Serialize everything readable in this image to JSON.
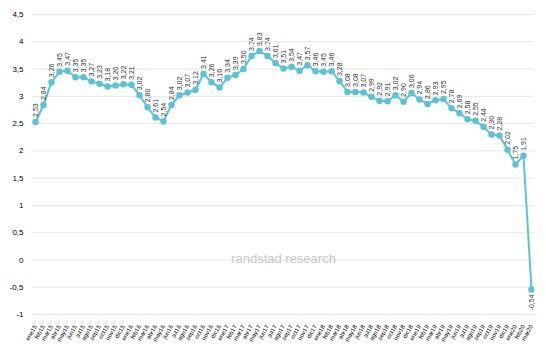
{
  "chart_data": {
    "type": "line",
    "color": "#5bc3d3",
    "marker": "circle",
    "data_labels": true,
    "grid": true,
    "annotations": [
      "randstad research"
    ],
    "categories": [
      "ene15",
      "feb15",
      "mar15",
      "abr15",
      "may15",
      "jun15",
      "jul15",
      "ago15",
      "sep15",
      "oct15",
      "nov15",
      "dic15",
      "ene16",
      "feb16",
      "mar16",
      "abr16",
      "may16",
      "jun16",
      "jul16",
      "ago16",
      "sep16",
      "oct16",
      "nov16",
      "dic16",
      "ene17",
      "feb17",
      "mar17",
      "abr17",
      "may17",
      "jun17",
      "jul17",
      "ago17",
      "sep17",
      "oct17",
      "nov17",
      "dic17",
      "ene18",
      "feb18",
      "mar18",
      "abr18",
      "may18",
      "jun18",
      "jul18",
      "ago18",
      "sep18",
      "oct18",
      "nov18",
      "dic18",
      "ene19",
      "feb19",
      "mar19",
      "abr19",
      "may19",
      "jun19",
      "jul19",
      "ago19",
      "sep19",
      "oct19",
      "nov19",
      "dic19",
      "ene20",
      "feb20",
      "mar20"
    ],
    "values": [
      2.53,
      2.84,
      3.26,
      3.45,
      3.47,
      3.35,
      3.35,
      3.27,
      3.23,
      3.18,
      3.2,
      3.22,
      3.21,
      3.02,
      2.8,
      2.61,
      2.54,
      2.84,
      3.02,
      3.07,
      3.12,
      3.41,
      3.26,
      3.16,
      3.34,
      3.39,
      3.5,
      3.74,
      3.83,
      3.74,
      3.61,
      3.51,
      3.54,
      3.47,
      3.57,
      3.46,
      3.45,
      3.46,
      3.28,
      3.08,
      3.08,
      3.07,
      2.99,
      2.92,
      2.91,
      3.02,
      2.9,
      3.06,
      2.94,
      2.86,
      2.93,
      2.95,
      2.78,
      2.69,
      2.58,
      2.55,
      2.44,
      2.3,
      2.28,
      2.02,
      1.75,
      1.91,
      -0.54
    ],
    "value_labels": [
      "2,53",
      "2,84",
      "3,26",
      "3,45",
      "3,47",
      "3,35",
      "3,35",
      "3,27",
      "3,23",
      "3,18",
      "3,20",
      "3,22",
      "3,21",
      "3,02",
      "2,80",
      "2,61",
      "2,54",
      "2,84",
      "3,02",
      "3,07",
      "3,12",
      "3,41",
      "3,26",
      "3,16",
      "3,34",
      "3,39",
      "3,50",
      "3,74",
      "3,83",
      "3,74",
      "3,61",
      "3,51",
      "3,54",
      "3,47",
      "3,57",
      "3,46",
      "3,45",
      "3,46",
      "3,28",
      "3,08",
      "3,08",
      "3,07",
      "2,99",
      "2,92",
      "2,91",
      "3,02",
      "2,90",
      "3,06",
      "2,94",
      "2,86",
      "2,93",
      "2,95",
      "2,78",
      "2,69",
      "2,58",
      "2,55",
      "2,44",
      "2,30",
      "2,28",
      "2,02",
      "1,75",
      "1,91",
      "-0,54"
    ],
    "ylim": [
      -1,
      4.5
    ],
    "yticks": [
      -1,
      {
        "value": -0.5,
        "label": "-0,5"
      },
      0,
      {
        "value": 0.5,
        "label": "0,5"
      },
      1,
      {
        "value": 1.5,
        "label": "1,5"
      },
      2,
      {
        "value": 2.5,
        "label": "2,5"
      },
      3,
      {
        "value": 3.5,
        "label": "3,5"
      },
      4,
      {
        "value": 4.5,
        "label": "4,5"
      }
    ]
  }
}
